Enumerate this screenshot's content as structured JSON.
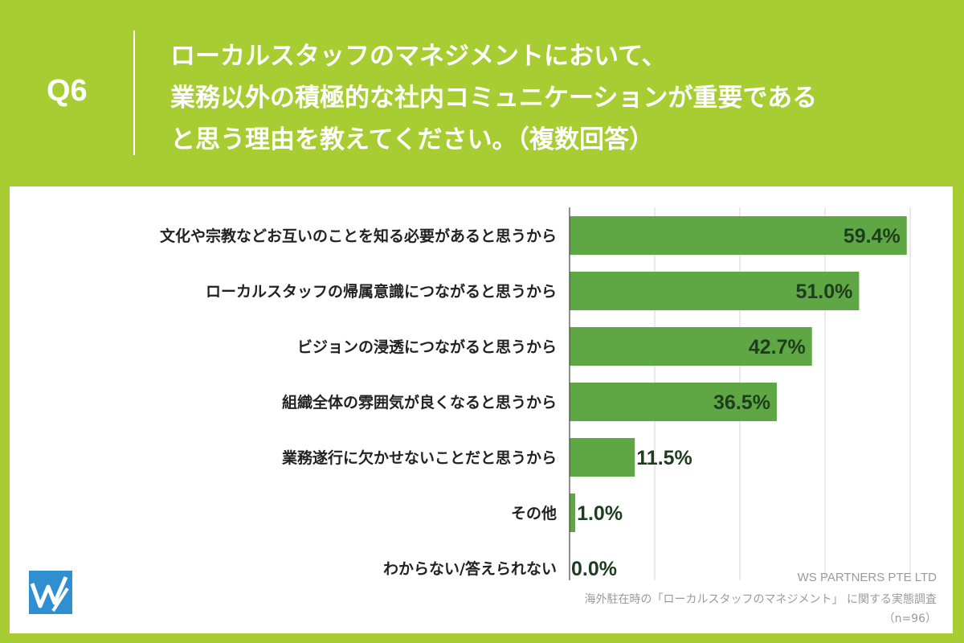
{
  "header": {
    "question_number": "Q6",
    "question_lines": [
      "ローカルスタッフのマネジメントにおいて、",
      "業務以外の積極的な社内コミュニケーションが重要である",
      "と思う理由を教えてください。（複数回答）"
    ]
  },
  "chart_data": {
    "type": "bar",
    "orientation": "horizontal",
    "categories": [
      "文化や宗教などお互いのことを知る必要があると思うから",
      "ローカルスタッフの帰属意識につながると思うから",
      "ビジョンの浸透につながると思うから",
      "組織全体の雰囲気が良くなると思うから",
      "業務遂行に欠かせないことだと思うから",
      "その他",
      "わからない/答えられない"
    ],
    "values": [
      59.4,
      51.0,
      42.7,
      36.5,
      11.5,
      1.0,
      0.0
    ],
    "value_labels": [
      "59.4%",
      "51.0%",
      "42.7%",
      "36.5%",
      "11.5%",
      "1.0%",
      "0.0%"
    ],
    "xlim": [
      0,
      60
    ],
    "grid": true,
    "bar_color": "#5fa744",
    "value_label_color": "#1e3d1e"
  },
  "footer": {
    "company": "WS PARTNERS PTE LTD",
    "survey": "海外駐在時の「ローカルスタッフのマネジメント」 に関する実態調査",
    "sample": "（n=96）"
  },
  "colors": {
    "background": "#a8cd32",
    "panel": "#ffffff",
    "logo": "#2f8fd0"
  }
}
